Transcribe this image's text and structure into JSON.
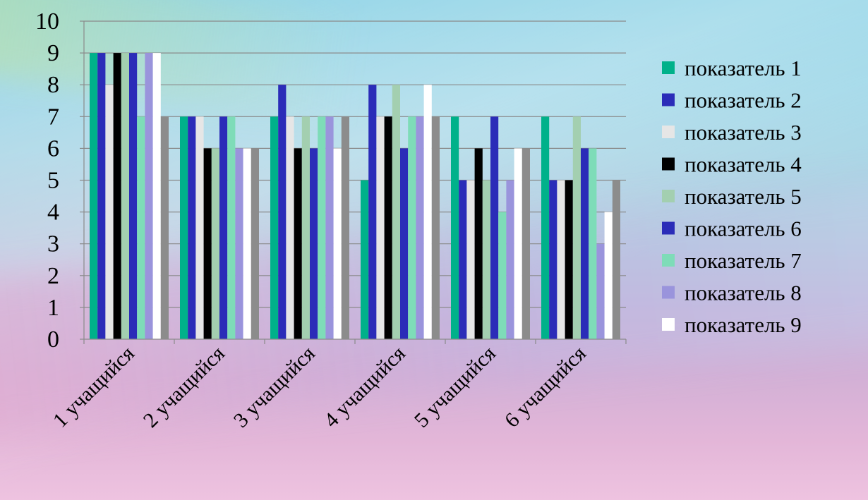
{
  "chart_data": {
    "type": "bar",
    "categories": [
      "1 учащийся",
      "2 учащийся",
      "3 учащийся",
      "4 учащийся",
      "5 учащийся",
      "6 учащийся"
    ],
    "series": [
      {
        "name": "показатель 1",
        "color": "#00b18a",
        "values": [
          9,
          7,
          7,
          5,
          7,
          7
        ]
      },
      {
        "name": "показатель 2",
        "color": "#2b2cb8",
        "values": [
          9,
          7,
          8,
          8,
          5,
          5
        ]
      },
      {
        "name": "показатель 3",
        "color": "#e6e6e6",
        "values": [
          8,
          7,
          7,
          7,
          5,
          5
        ]
      },
      {
        "name": "показатель 4",
        "color": "#000000",
        "values": [
          9,
          6,
          6,
          7,
          6,
          5
        ]
      },
      {
        "name": "показатель 5",
        "color": "#a3cfb0",
        "values": [
          9,
          6,
          7,
          8,
          5,
          7
        ]
      },
      {
        "name": "показатель 6",
        "color": "#2b2cb8",
        "values": [
          9,
          7,
          6,
          6,
          7,
          6
        ]
      },
      {
        "name": "показатель 7",
        "color": "#7edcb8",
        "values": [
          7,
          7,
          7,
          7,
          4,
          6
        ]
      },
      {
        "name": "показатель 8",
        "color": "#9a94dc",
        "values": [
          9,
          6,
          7,
          7,
          5,
          3
        ]
      },
      {
        "name": "показатель 9",
        "color": "#ffffff",
        "values": [
          9,
          6,
          6,
          8,
          6,
          4
        ]
      },
      {
        "color": "#8c8c8c",
        "values": [
          7,
          6,
          7,
          7,
          6,
          5
        ]
      }
    ],
    "ylim": [
      0,
      10
    ],
    "yticks": [
      "0",
      "1",
      "2",
      "3",
      "4",
      "5",
      "6",
      "7",
      "8",
      "9",
      "10"
    ],
    "grid": true,
    "legend": "right"
  }
}
